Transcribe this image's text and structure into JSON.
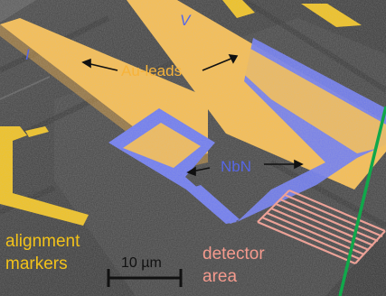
{
  "labels": {
    "current_lead": "I",
    "voltage_lead": "V",
    "au_leads": "Au-leads",
    "nbn": "NbN",
    "alignment_line1": "alignment",
    "alignment_line2": "markers",
    "scale": "10 µm",
    "detector_line1": "detector",
    "detector_line2": "area"
  },
  "colors": {
    "gold": "#f9bd4c",
    "gold_text": "#f6b33a",
    "nbn_blue": "#6b78f2",
    "label_blue": "#5767e6",
    "alignment_yellow": "#f2c21a",
    "detector_pink": "#f49a8d",
    "green_line": "#10a84a",
    "background": "#3b3b3b"
  }
}
